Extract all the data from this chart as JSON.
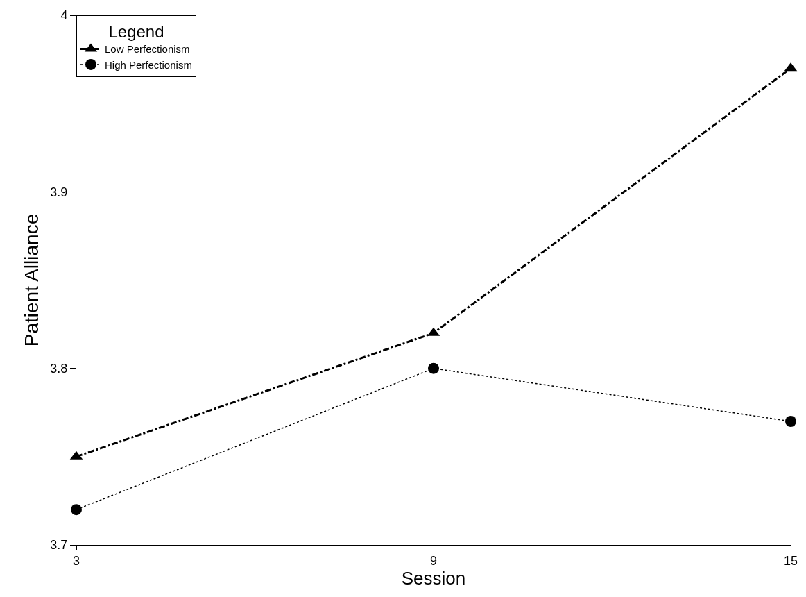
{
  "chart_data": {
    "type": "line",
    "xlabel": "Session",
    "ylabel": "Patient Alliance",
    "legend_title": "Legend",
    "x": [
      3,
      9,
      15
    ],
    "series": [
      {
        "name": "Low Perfectionism",
        "color": "#000000",
        "values": [
          3.75,
          3.82,
          3.97
        ],
        "marker": "triangle",
        "line_style": "dashed"
      },
      {
        "name": "High Perfectionism",
        "color": "#000000",
        "values": [
          3.72,
          3.8,
          3.77
        ],
        "marker": "circle",
        "line_style": "dotted"
      }
    ],
    "xlim": [
      3,
      15
    ],
    "xticks": [
      3,
      9,
      15
    ],
    "ylim": [
      3.7,
      4
    ],
    "yticks": [
      3.7,
      3.8,
      3.9,
      4
    ],
    "grid": false,
    "legend": "top left"
  }
}
